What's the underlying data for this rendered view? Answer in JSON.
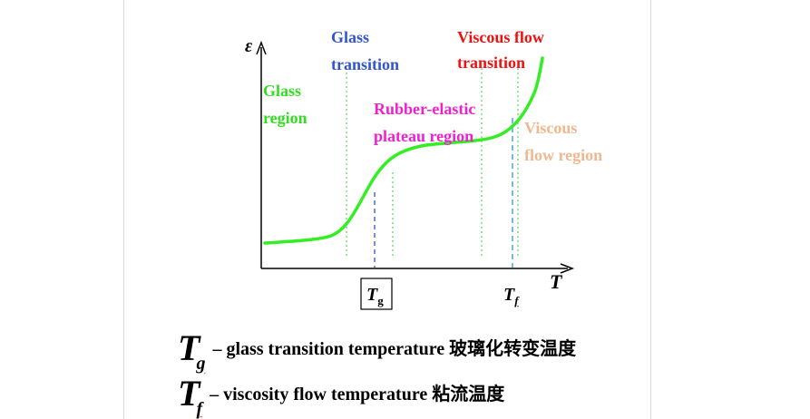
{
  "axes": {
    "y_label": "ε",
    "x_label": "T"
  },
  "markers": {
    "tg": {
      "main": "T",
      "sub": "g"
    },
    "tf": {
      "main": "T",
      "sub": "f"
    }
  },
  "labels": {
    "glass_region": [
      "Glass",
      "region"
    ],
    "glass_transition": [
      "Glass",
      "transition"
    ],
    "rubber_plateau": [
      "Rubber-elastic",
      "plateau region"
    ],
    "viscous_flow_transition": [
      "Viscous flow",
      "transition"
    ],
    "viscous_flow_region": [
      "Viscous",
      "flow region"
    ]
  },
  "legend": [
    {
      "symbol": "T",
      "sub": "g",
      "text": "– glass transition temperature 玻璃化转变温度"
    },
    {
      "symbol": "T",
      "sub": "f",
      "text": "– viscosity flow temperature 粘流温度"
    }
  ],
  "colors": {
    "curve": "#33ee22",
    "guide_green": "#5cd65c",
    "guide_blue": "#3366bb",
    "guide_cyan": "#55aadd",
    "glass_region": "#33dd22",
    "glass_transition": "#3355cc",
    "rubber_plateau": "#ee22cc",
    "viscous_flow_transition": "#ee1111",
    "viscous_flow_region": "#f0b890"
  }
}
